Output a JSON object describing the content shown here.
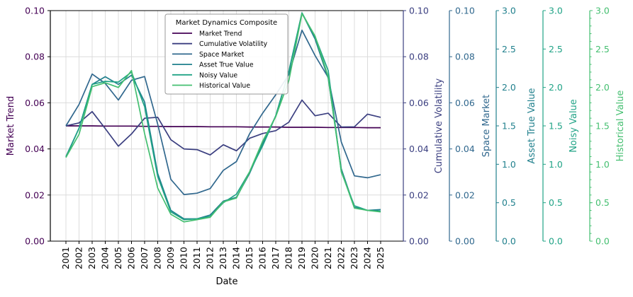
{
  "chart_data": {
    "type": "line",
    "title": "",
    "xlabel": "Date",
    "categories": [
      "2001",
      "2002",
      "2003",
      "2004",
      "2005",
      "2006",
      "2007",
      "2008",
      "2009",
      "2010",
      "2011",
      "2012",
      "2013",
      "2014",
      "2015",
      "2016",
      "2017",
      "2018",
      "2019",
      "2020",
      "2021",
      "2022",
      "2023",
      "2024",
      "2025"
    ],
    "legend": {
      "title": "Market Dynamics Composite",
      "placement": "top-center"
    },
    "grid": true,
    "axes": [
      {
        "id": "left",
        "label": "Market Trend",
        "ylim": [
          0,
          0.1
        ],
        "ticks": [
          "0.00",
          "0.02",
          "0.04",
          "0.06",
          "0.08",
          "0.10"
        ],
        "color": "#440154"
      },
      {
        "id": "r1",
        "label": "Cumulative Volatility",
        "ylim": [
          0,
          0.1
        ],
        "ticks": [
          "0.00",
          "0.02",
          "0.04",
          "0.06",
          "0.08",
          "0.10"
        ],
        "color": "#3b3f80"
      },
      {
        "id": "r2",
        "label": "Space Market",
        "ylim": [
          0,
          0.1
        ],
        "ticks": [
          "0.00",
          "0.02",
          "0.04",
          "0.06",
          "0.08",
          "0.10"
        ],
        "color": "#31688e"
      },
      {
        "id": "r3",
        "label": "Asset True Value",
        "ylim": [
          0,
          3.0
        ],
        "ticks": [
          "0.0",
          "0.5",
          "1.0",
          "1.5",
          "2.0",
          "2.5",
          "3.0"
        ],
        "color": "#21808d"
      },
      {
        "id": "r4",
        "label": "Noisy Value",
        "ylim": [
          0,
          3.0
        ],
        "ticks": [
          "0.0",
          "0.5",
          "1.0",
          "1.5",
          "2.0",
          "2.5",
          "3.0"
        ],
        "color": "#20a386"
      },
      {
        "id": "r5",
        "label": "Historical Value",
        "ylim": [
          0,
          3.0
        ],
        "ticks": [
          "0.0",
          "0.5",
          "1.0",
          "1.5",
          "2.0",
          "2.5",
          "3.0"
        ],
        "color": "#44bf70"
      }
    ],
    "series": [
      {
        "name": "Market Trend",
        "axis": "left",
        "color": "#440154",
        "values": [
          0.05,
          0.05,
          0.05,
          0.0499,
          0.0499,
          0.0499,
          0.0498,
          0.0498,
          0.0497,
          0.0497,
          0.0497,
          0.0496,
          0.0496,
          0.0496,
          0.0495,
          0.0495,
          0.0495,
          0.0494,
          0.0494,
          0.0494,
          0.0493,
          0.0493,
          0.0493,
          0.0492,
          0.0492
        ]
      },
      {
        "name": "Cumulative Volatility",
        "axis": "r1",
        "color": "#3b3f80",
        "values": [
          0.05,
          0.0513,
          0.0562,
          0.0488,
          0.0412,
          0.0465,
          0.0533,
          0.0537,
          0.044,
          0.04,
          0.0397,
          0.0374,
          0.0418,
          0.0392,
          0.0446,
          0.0467,
          0.0479,
          0.0516,
          0.0612,
          0.0544,
          0.0555,
          0.0495,
          0.0496,
          0.0551,
          0.0537
        ]
      },
      {
        "name": "Space Market",
        "axis": "r2",
        "color": "#31688e",
        "values": [
          0.05,
          0.0593,
          0.0725,
          0.0684,
          0.0612,
          0.0698,
          0.0714,
          0.0507,
          0.0268,
          0.0202,
          0.0208,
          0.0228,
          0.0307,
          0.0345,
          0.0465,
          0.0555,
          0.0635,
          0.0723,
          0.0915,
          0.0805,
          0.071,
          0.043,
          0.0283,
          0.0275,
          0.0288
        ]
      },
      {
        "name": "Asset True Value",
        "axis": "r3",
        "color": "#21808d",
        "values": [
          1.1,
          1.47,
          2.04,
          2.14,
          2.04,
          2.16,
          1.81,
          0.88,
          0.4,
          0.29,
          0.29,
          0.34,
          0.52,
          0.57,
          0.88,
          1.27,
          1.63,
          2.21,
          2.97,
          2.63,
          2.12,
          0.94,
          0.44,
          0.4,
          0.41
        ]
      },
      {
        "name": "Noisy Value",
        "axis": "r4",
        "color": "#20a386",
        "values": [
          1.09,
          1.47,
          2.04,
          2.08,
          2.07,
          2.2,
          1.75,
          0.84,
          0.38,
          0.28,
          0.29,
          0.32,
          0.5,
          0.61,
          0.9,
          1.24,
          1.63,
          2.2,
          2.97,
          2.66,
          2.22,
          0.9,
          0.46,
          0.4,
          0.39
        ]
      },
      {
        "name": "Historical Value",
        "axis": "r5",
        "color": "#44bf70",
        "values": [
          1.09,
          1.39,
          2.01,
          2.06,
          2.0,
          2.22,
          1.4,
          0.69,
          0.35,
          0.25,
          0.28,
          0.31,
          0.51,
          0.56,
          0.9,
          1.3,
          1.62,
          2.09,
          2.96,
          2.67,
          2.14,
          0.91,
          0.43,
          0.4,
          0.38
        ]
      }
    ]
  }
}
